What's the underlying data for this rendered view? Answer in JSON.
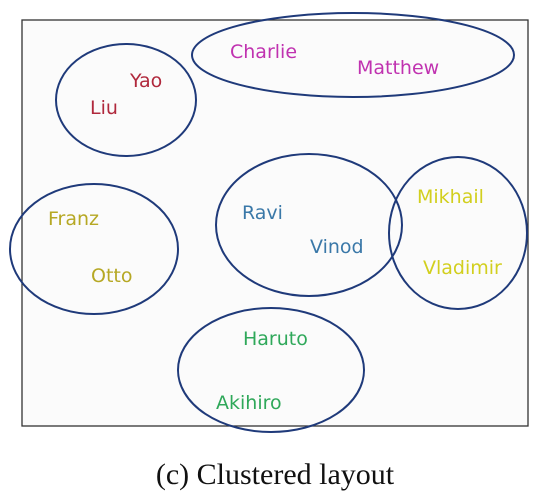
{
  "colors": {
    "frame": "#333333",
    "ellipse": "#1f3a7a",
    "red": "#b0283c",
    "magenta": "#c032b0",
    "olive": "#b6a824",
    "blue": "#3a78a8",
    "green": "#2fa85a",
    "yellow": "#d2cf1e"
  },
  "names": {
    "yao": "Yao",
    "liu": "Liu",
    "charlie": "Charlie",
    "matthew": "Matthew",
    "franz": "Franz",
    "otto": "Otto",
    "ravi": "Ravi",
    "vinod": "Vinod",
    "mikhail": "Mikhail",
    "vladimir": "Vladimir",
    "haruto": "Haruto",
    "akihiro": "Akihiro"
  },
  "caption": "(c) Clustered layout"
}
